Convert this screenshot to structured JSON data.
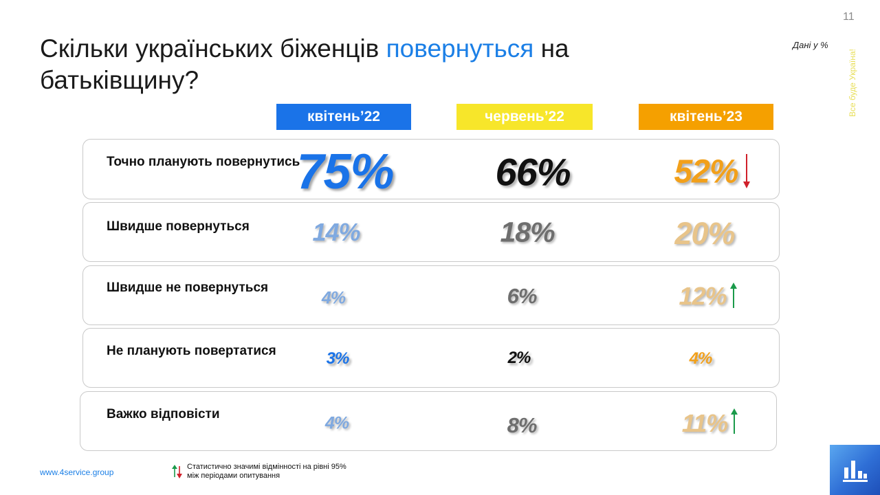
{
  "page_number": "11",
  "data_note": "Дані у %",
  "vertical_text": "Все буде Україна!",
  "title": {
    "part1": "Скільки українських біженців ",
    "highlight": "повернуться",
    "part2": " на батьківщину?"
  },
  "columns": [
    "квітень’22",
    "червень’22",
    "квітень’23"
  ],
  "rows": [
    {
      "label": "Точно планують повернутись",
      "values": [
        "75%",
        "66%",
        "52%"
      ],
      "change": "down"
    },
    {
      "label": "Швидше повернуться",
      "values": [
        "14%",
        "18%",
        "20%"
      ],
      "change": ""
    },
    {
      "label": "Швидше не повернуться",
      "values": [
        "4%",
        "6%",
        "12%"
      ],
      "change": "up"
    },
    {
      "label": "Не планують повертатися",
      "values": [
        "3%",
        "2%",
        "4%"
      ],
      "change": ""
    },
    {
      "label": "Важко відповісти",
      "values": [
        "4%",
        "8%",
        "11%"
      ],
      "change": "up"
    }
  ],
  "footer": {
    "website": "www.4service.group",
    "legend_text": "Статистично значимі відмінності на  рівні 95% між періодами опитування"
  },
  "colors": {
    "accent_blue": "#1a73e8",
    "yellow": "#f7e62a",
    "orange": "#f5a000",
    "arrow_up": "#1a9a4a",
    "arrow_down": "#d0202a"
  },
  "icons": [
    "arrow-up-icon",
    "arrow-down-icon",
    "logo-icon"
  ]
}
